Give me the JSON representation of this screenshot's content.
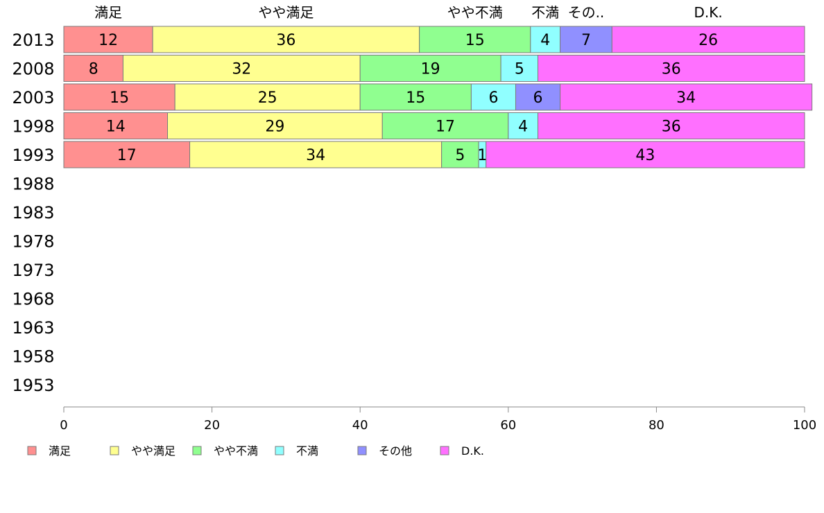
{
  "chart_data": {
    "type": "bar",
    "orientation": "horizontal",
    "stacked": true,
    "categories": [
      "2013",
      "2008",
      "2003",
      "1998",
      "1993",
      "1988",
      "1983",
      "1978",
      "1973",
      "1968",
      "1963",
      "1958",
      "1953"
    ],
    "series": [
      {
        "name": "満足",
        "color": "#ff9090",
        "values": [
          12,
          8,
          15,
          14,
          17,
          null,
          null,
          null,
          null,
          null,
          null,
          null,
          null
        ]
      },
      {
        "name": "やや満足",
        "color": "#ffff90",
        "values": [
          36,
          32,
          25,
          29,
          34,
          null,
          null,
          null,
          null,
          null,
          null,
          null,
          null
        ]
      },
      {
        "name": "やや不満",
        "color": "#90ff90",
        "values": [
          15,
          19,
          15,
          17,
          5,
          null,
          null,
          null,
          null,
          null,
          null,
          null,
          null
        ]
      },
      {
        "name": "不満",
        "color": "#90ffff",
        "values": [
          4,
          5,
          6,
          4,
          1,
          null,
          null,
          null,
          null,
          null,
          null,
          null,
          null
        ]
      },
      {
        "name": "その他",
        "color": "#9090ff",
        "values": [
          7,
          0,
          6,
          0,
          0,
          null,
          null,
          null,
          null,
          null,
          null,
          null,
          null
        ]
      },
      {
        "name": "D.K.",
        "color": "#ff70ff",
        "values": [
          26,
          36,
          34,
          36,
          43,
          null,
          null,
          null,
          null,
          null,
          null,
          null,
          null
        ]
      }
    ],
    "top_labels": [
      "満足",
      "やや満足",
      "やや不満",
      "不満",
      "その..",
      "D.K."
    ],
    "xlim": [
      0,
      100
    ],
    "xticks": [
      "0",
      "20",
      "40",
      "60",
      "80",
      "100"
    ],
    "grid": false,
    "legend": "bottom-left"
  }
}
